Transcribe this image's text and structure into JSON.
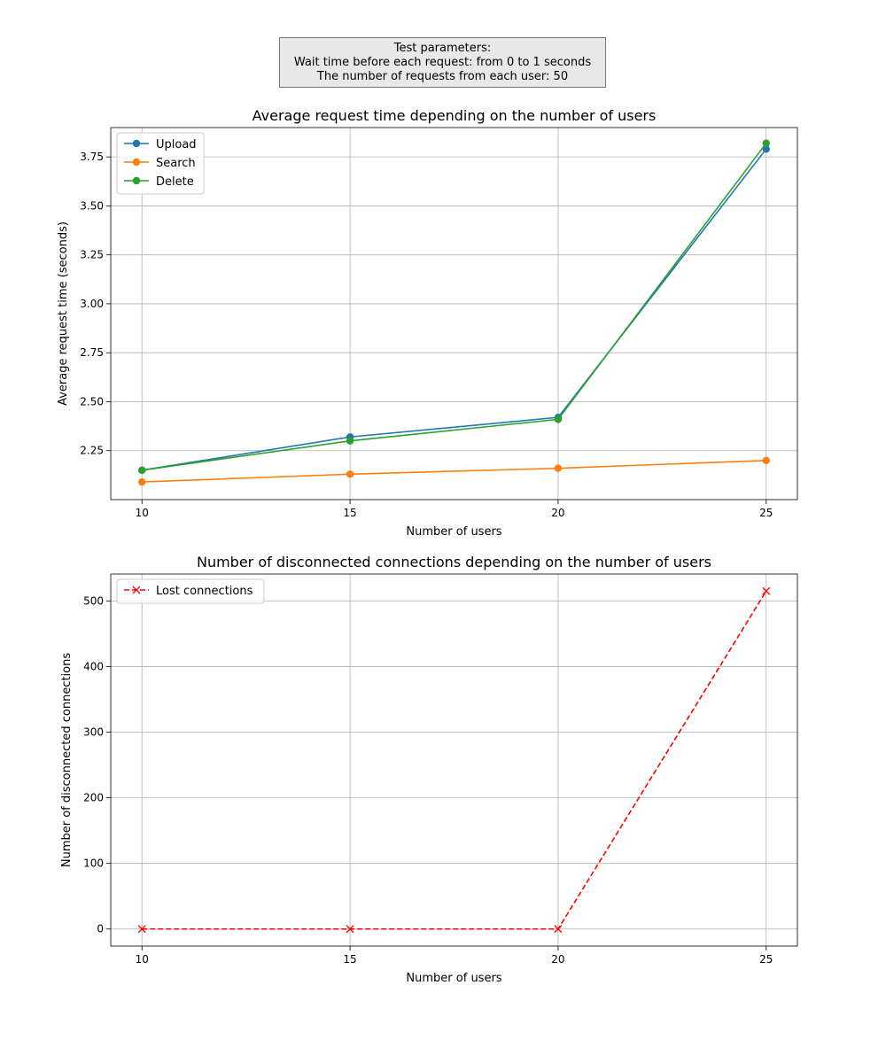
{
  "params_box": {
    "line1": "Test parameters:",
    "line2": "Wait time before each request: from 0 to 1 seconds",
    "line3": "The number of requests from each user: 50"
  },
  "chart_data": [
    {
      "type": "line",
      "title": "Average request time depending on the number of users",
      "xlabel": "Number of users",
      "ylabel": "Average request time (seconds)",
      "x": [
        10,
        15,
        20,
        25
      ],
      "xticks": [
        "10",
        "15",
        "20",
        "25"
      ],
      "xlim": [
        9.25,
        25.75
      ],
      "ylim": [
        2.0,
        3.9
      ],
      "yticks": [
        2.25,
        2.5,
        2.75,
        3.0,
        3.25,
        3.5,
        3.75
      ],
      "ytick_labels": [
        "2.25",
        "2.50",
        "2.75",
        "3.00",
        "3.25",
        "3.50",
        "3.75"
      ],
      "grid": true,
      "legend_position": "top-left",
      "series": [
        {
          "name": "Upload",
          "values": [
            2.15,
            2.32,
            2.42,
            3.79
          ],
          "color": "#1f77b4",
          "marker": "circle",
          "linestyle": "solid"
        },
        {
          "name": "Search",
          "values": [
            2.09,
            2.13,
            2.16,
            2.2
          ],
          "color": "#ff7f0e",
          "marker": "circle",
          "linestyle": "solid"
        },
        {
          "name": "Delete",
          "values": [
            2.15,
            2.3,
            2.41,
            3.82
          ],
          "color": "#2ca02c",
          "marker": "circle",
          "linestyle": "solid"
        }
      ]
    },
    {
      "type": "line",
      "title": "Number of disconnected connections depending on the number of users",
      "xlabel": "Number of users",
      "ylabel": "Number of disconnected connections",
      "x": [
        10,
        15,
        20,
        25
      ],
      "xticks": [
        "10",
        "15",
        "20",
        "25"
      ],
      "xlim": [
        9.25,
        25.75
      ],
      "ylim": [
        -26,
        541
      ],
      "yticks": [
        0,
        100,
        200,
        300,
        400,
        500
      ],
      "ytick_labels": [
        "0",
        "100",
        "200",
        "300",
        "400",
        "500"
      ],
      "grid": true,
      "legend_position": "top-left",
      "series": [
        {
          "name": "Lost connections",
          "values": [
            0,
            0,
            0,
            515
          ],
          "color": "#ff0000",
          "marker": "x",
          "linestyle": "dashed"
        }
      ]
    }
  ]
}
